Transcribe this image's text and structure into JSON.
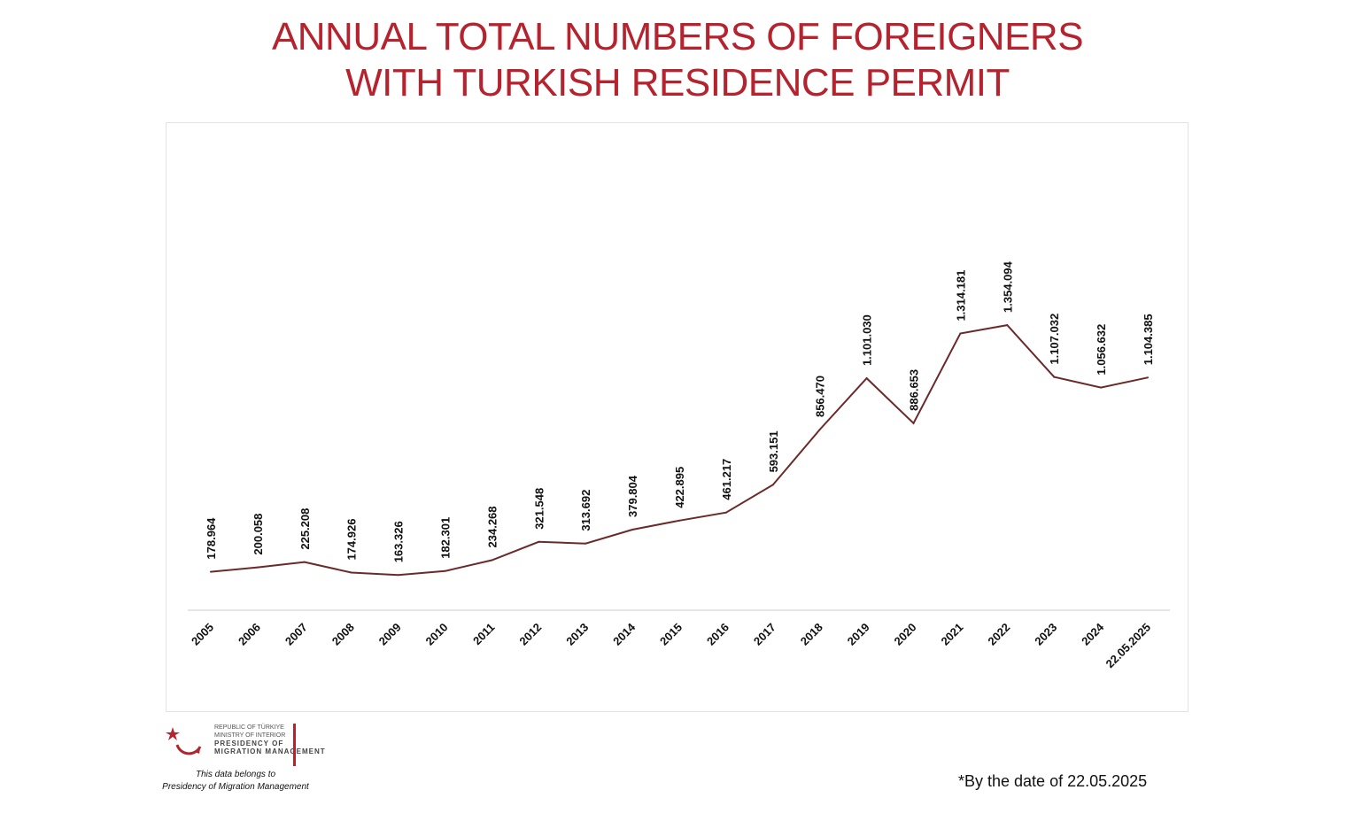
{
  "title_lines": [
    "ANNUAL TOTAL NUMBERS OF FOREIGNERS",
    "WITH TURKISH RESIDENCE PERMIT"
  ],
  "colors": {
    "title": "#b5242e",
    "line": "#6b2a2a",
    "axis": "#cccccc",
    "brand": "#b5242e"
  },
  "chart_data": {
    "type": "line",
    "title": "ANNUAL TOTAL NUMBERS OF FOREIGNERS WITH TURKISH RESIDENCE PERMIT",
    "xlabel": "",
    "ylabel": "",
    "categories": [
      "2005",
      "2006",
      "2007",
      "2008",
      "2009",
      "2010",
      "2011",
      "2012",
      "2013",
      "2014",
      "2015",
      "2016",
      "2017",
      "2018",
      "2019",
      "2020",
      "2021",
      "2022",
      "2023",
      "2024",
      "22.05.2025"
    ],
    "values": [
      178964,
      200058,
      225208,
      174926,
      163326,
      182301,
      234268,
      321548,
      313692,
      379804,
      422895,
      461217,
      593151,
      856470,
      1101030,
      886653,
      1314181,
      1354094,
      1107032,
      1056632,
      1104385
    ],
    "data_labels": [
      "178.964",
      "200.058",
      "225.208",
      "174.926",
      "163.326",
      "182.301",
      "234.268",
      "321.548",
      "313.692",
      "379.804",
      "422.895",
      "461.217",
      "593.151",
      "856.470",
      "1.101.030",
      "886.653",
      "1.314.181",
      "1.354.094",
      "1.107.032",
      "1.056.632",
      "1.104.385"
    ],
    "grid": false,
    "legend": "none"
  },
  "logo": {
    "lines_small": [
      "REPUBLIC OF TÜRKIYE",
      "MINISTRY OF INTERIOR"
    ],
    "lines_big": [
      "PRESIDENCY OF",
      "MIGRATION MANAGEMENT"
    ],
    "owner_text": [
      "This data belongs to",
      "Presidency of Migration Management"
    ]
  },
  "footnote": "*By the date of 22.05.2025"
}
